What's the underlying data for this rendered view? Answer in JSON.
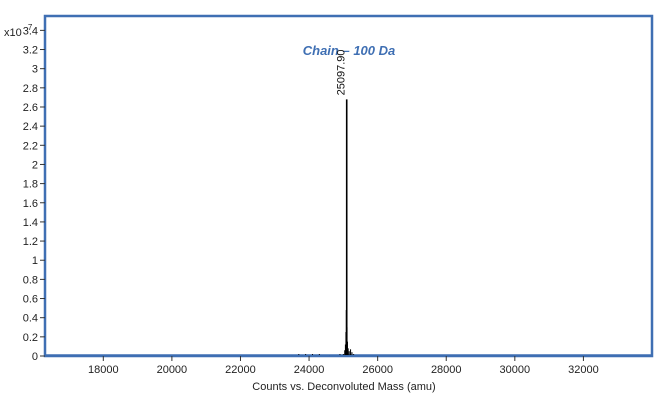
{
  "chart_data": {
    "type": "line",
    "title": "Chain – 100 Da",
    "xlabel": "Counts vs. Deconvoluted Mass (amu)",
    "ylabel": "",
    "y_multiplier_label": "x10",
    "y_multiplier_exponent": "7",
    "xlim": [
      16300,
      34000
    ],
    "ylim": [
      0,
      3.55
    ],
    "x_ticks": [
      18000,
      20000,
      22000,
      24000,
      26000,
      28000,
      30000,
      32000
    ],
    "y_ticks": [
      0,
      0.2,
      0.4,
      0.6,
      0.8,
      1,
      1.2,
      1.4,
      1.6,
      1.8,
      2,
      2.2,
      2.4,
      2.6,
      2.8,
      3,
      3.2,
      3.4
    ],
    "grid": false,
    "legend": "none",
    "series": [
      {
        "points": [
          [
            23500,
            0.01
          ],
          [
            23700,
            0.02
          ],
          [
            23800,
            0.01
          ],
          [
            23900,
            0.02
          ],
          [
            24000,
            0.01
          ],
          [
            24100,
            0.02
          ],
          [
            24200,
            0.01
          ],
          [
            24300,
            0.02
          ],
          [
            24600,
            0.01
          ],
          [
            24900,
            0.02
          ],
          [
            25000,
            0.02
          ],
          [
            25040,
            0.06
          ],
          [
            25060,
            0.12
          ],
          [
            25075,
            0.25
          ],
          [
            25085,
            0.48
          ],
          [
            25097.9,
            2.68
          ],
          [
            25108,
            0.3
          ],
          [
            25120,
            0.15
          ],
          [
            25140,
            0.08
          ],
          [
            25170,
            0.05
          ],
          [
            25210,
            0.07
          ],
          [
            25250,
            0.04
          ],
          [
            25300,
            0.02
          ]
        ]
      }
    ],
    "annotations": [
      {
        "x": 25097.9,
        "y": 2.68,
        "label": "25097.90"
      }
    ],
    "colors": {
      "frame": "#3f6fb3",
      "title": "#3f6fb3",
      "series": "#000000",
      "baseline": "#3f6fb3",
      "text": "#222222"
    }
  }
}
